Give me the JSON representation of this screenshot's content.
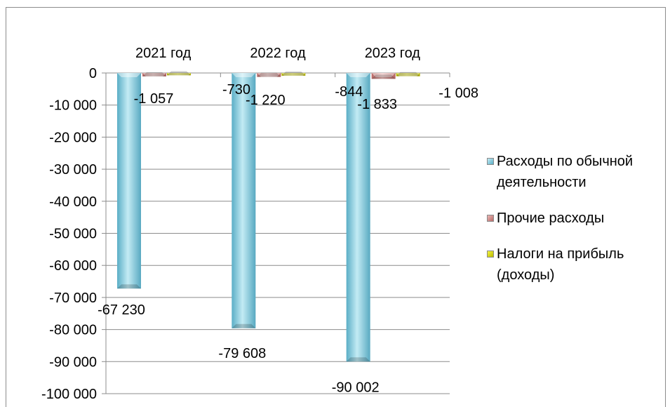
{
  "chart_data": {
    "type": "bar",
    "categories": [
      "2021 год",
      "2022 год",
      "2023 год"
    ],
    "series": [
      {
        "name": "Расходы по обычной деятельности",
        "values": [
          -67230,
          -79608,
          -90002
        ],
        "labels": [
          "-67 230",
          "-79 608",
          "-90 002"
        ],
        "color": "#8fd3e4"
      },
      {
        "name": "Прочие расходы",
        "values": [
          -1057,
          -1220,
          -1833
        ],
        "labels": [
          "-1 057",
          "-1 220",
          "-1 833"
        ],
        "color": "#d99694"
      },
      {
        "name": "Налоги на прибыль (доходы)",
        "values": [
          -730,
          -844,
          -1008
        ],
        "labels": [
          "-730",
          "-844",
          "-1 008"
        ],
        "color": "#e6e600"
      }
    ],
    "ylim": [
      -100000,
      0
    ],
    "yticks": [
      {
        "value": 0,
        "label": "0"
      },
      {
        "value": -10000,
        "label": "-10 000"
      },
      {
        "value": -20000,
        "label": "-20 000"
      },
      {
        "value": -30000,
        "label": "-30 000"
      },
      {
        "value": -40000,
        "label": "-40 000"
      },
      {
        "value": -50000,
        "label": "-50 000"
      },
      {
        "value": -60000,
        "label": "-60 000"
      },
      {
        "value": -70000,
        "label": "-70 000"
      },
      {
        "value": -80000,
        "label": "-80 000"
      },
      {
        "value": -90000,
        "label": "-90 000"
      },
      {
        "value": -100000,
        "label": "-100 000"
      }
    ],
    "grid": true,
    "legend_position": "right",
    "x_axis_position": "top"
  }
}
